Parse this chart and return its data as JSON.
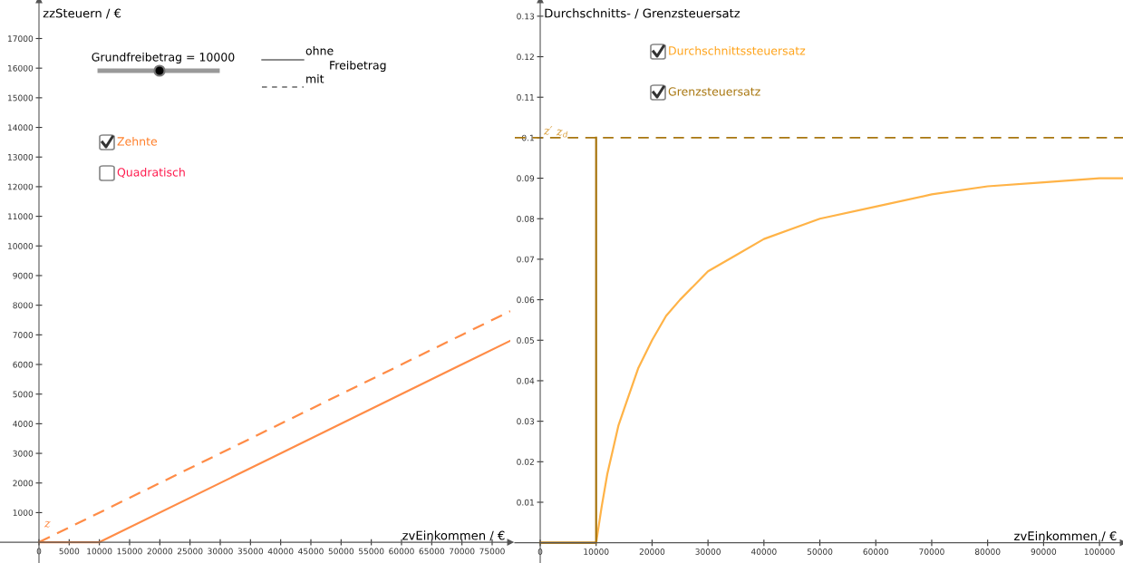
{
  "chart_data": [
    {
      "type": "line",
      "ylabel": "zzSteuern / €",
      "xlabel": "zvEinkommen / €",
      "xlim": [
        -6450,
        78000
      ],
      "ylim": [
        -700,
        18300
      ],
      "xticks": [
        0,
        5000,
        10000,
        15000,
        20000,
        25000,
        30000,
        35000,
        40000,
        45000,
        50000,
        55000,
        60000,
        65000,
        70000,
        75000
      ],
      "yticks": [
        1000,
        2000,
        3000,
        4000,
        5000,
        6000,
        7000,
        8000,
        9000,
        10000,
        11000,
        12000,
        13000,
        14000,
        15000,
        16000,
        17000
      ],
      "grid": false,
      "legend": false,
      "series": [
        {
          "color": "#ff8c47",
          "line_style": "solid",
          "x": [
            0,
            10000,
            78000
          ],
          "values": [
            0,
            0,
            6800
          ]
        },
        {
          "color": "#ff8c47",
          "line_style": "dashed",
          "x": [
            0,
            78000
          ],
          "values": [
            0,
            7800
          ]
        }
      ],
      "annotations": [
        "Grundfreibetrag = 10000",
        "ohne",
        "Freibetrag",
        "mit",
        "Zehnte",
        "Quadratisch",
        "z"
      ]
    },
    {
      "type": "line",
      "ylabel": "Durchschnitts- / Grenzsteuersatz",
      "xlabel": "zvEinkommen / €",
      "xlim": [
        -4540,
        104200
      ],
      "ylim": [
        -0.005,
        0.134
      ],
      "xticks": [
        0,
        10000,
        20000,
        30000,
        40000,
        50000,
        60000,
        70000,
        80000,
        90000,
        100000
      ],
      "yticks": [
        0.01,
        0.02,
        0.03,
        0.04,
        0.05,
        0.06,
        0.07,
        0.08,
        0.09,
        0.1,
        0.11,
        0.12,
        0.13
      ],
      "grid": false,
      "legend": false,
      "series": [
        {
          "color": "#ffb347",
          "line_style": "solid",
          "x": [
            0,
            10000,
            11000,
            12000,
            13000,
            14000,
            15000,
            17500,
            20000,
            22500,
            25000,
            30000,
            35000,
            40000,
            50000,
            60000,
            70000,
            80000,
            90000,
            100000,
            104200
          ],
          "values": [
            0,
            0,
            0.009,
            0.017,
            0.023,
            0.029,
            0.033,
            0.043,
            0.05,
            0.056,
            0.06,
            0.067,
            0.071,
            0.075,
            0.08,
            0.083,
            0.086,
            0.088,
            0.089,
            0.09,
            0.09
          ]
        },
        {
          "type": "step",
          "color": "#a8760f",
          "line_style": "solid",
          "x": [
            0,
            10000
          ],
          "values": [
            0,
            0.1
          ]
        }
      ],
      "ref_lines": [
        {
          "axis": "y",
          "value": 0.1,
          "color": "#a8760f",
          "line_style": "dashed"
        }
      ],
      "annotations": [
        "Durchschnittssteuersatz",
        "Grenzsteuersatz",
        "z′",
        "z$_{d}$"
      ]
    }
  ]
}
